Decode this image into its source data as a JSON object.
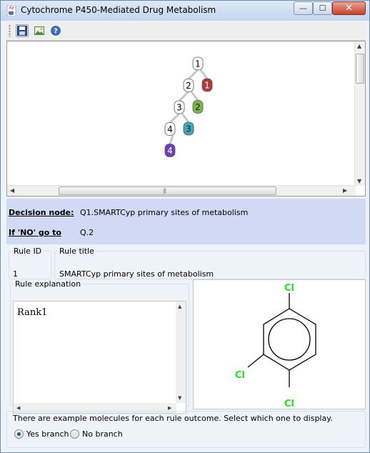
{
  "window": {
    "title": "Cytochrome P450-Mediated Drug Metabolism",
    "controls": {
      "minimize": "—",
      "maximize": "☐",
      "close": "✕"
    }
  },
  "toolbar": {
    "buttons": [
      {
        "name": "save",
        "icon": "floppy-disk-icon"
      },
      {
        "name": "export-image",
        "icon": "image-icon"
      },
      {
        "name": "help",
        "icon": "help-icon"
      }
    ]
  },
  "tree": {
    "decision_nodes": [
      "1",
      "2",
      "3",
      "4"
    ],
    "outcome_nodes": [
      {
        "label": "1",
        "color": "#b03a3a"
      },
      {
        "label": "2",
        "color": "#7ab648"
      },
      {
        "label": "3",
        "color": "#3fa7b5"
      },
      {
        "label": "4",
        "color": "#6e3fb5"
      }
    ],
    "scroll_grip": "|||"
  },
  "decision": {
    "node_label": "Decision node:",
    "node_value": "Q1.SMARTCyp primary sites of metabolism",
    "no_label": "If 'NO' go to",
    "no_value": "Q.2"
  },
  "rule": {
    "id_label": "Rule ID",
    "id_value": "1",
    "title_label": "Rule title",
    "title_value": "SMARTCyp primary sites of metabolism",
    "explanation_label": "Rule explanation",
    "explanation_value": "Rank1"
  },
  "molecule": {
    "atoms": [
      "Cl",
      "Cl",
      "Cl"
    ],
    "atom_color": "#22dd22"
  },
  "examples": {
    "text": "There are example molecules for each rule outcome. Select which one to display.",
    "yes_label": "Yes branch",
    "no_label": "No branch",
    "selected": "yes"
  }
}
